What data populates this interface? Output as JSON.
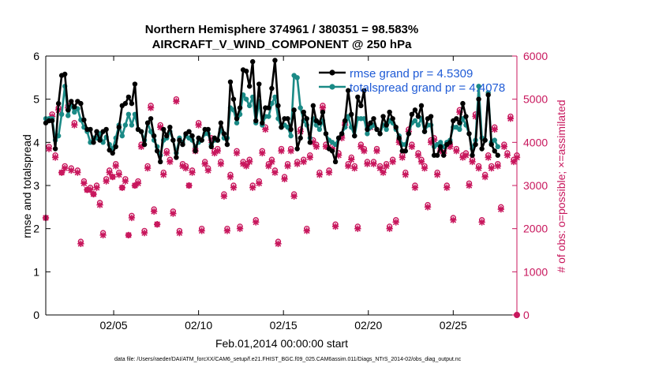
{
  "chart_data": {
    "type": "line",
    "title": [
      "Northern Hemisphere 374961 / 380351 = 98.583%",
      "AIRCRAFT_V_WIND_COMPONENT @ 250 hPa"
    ],
    "xlabel": "Feb.01,2014 00:00:00 start",
    "ylabel_left": "rmse and totalspread",
    "ylabel_right": "# of obs: o=possible; ×=assimilated",
    "x_ticks": [
      "02/05",
      "02/10",
      "02/15",
      "02/20",
      "02/25"
    ],
    "x_tick_days": [
      5,
      10,
      15,
      20,
      25
    ],
    "xlim": [
      1,
      28.75
    ],
    "y_left_ticks": [
      "0",
      "1",
      "2",
      "3",
      "4",
      "5",
      "6"
    ],
    "ylim_left": [
      0,
      6
    ],
    "y_right_ticks": [
      "0",
      "1000",
      "2000",
      "3000",
      "4000",
      "5000",
      "6000"
    ],
    "ylim_right": [
      0,
      6000
    ],
    "grid": false,
    "legend_position": "top-right",
    "footnote": "data file: /Users/raeder/DAI/ATM_forcXX/CAM6_setup/f.e21.FHIST_BGC.f09_025.CAM6assim.011/Diags_NTrS_2014-02/obs_diag_output.nc",
    "colors": {
      "rmse": "#000000",
      "spread": "#1a8a86",
      "obs": "#c8175d",
      "legend_text": "#1f5bd6"
    },
    "series": [
      {
        "name": "rmse grand pr = 4.5309",
        "values": [
          4.45,
          4.5,
          4.5,
          3.85,
          4.9,
          5.55,
          5.58,
          4.75,
          4.95,
          4.82,
          4.95,
          4.9,
          4.52,
          4.3,
          4.3,
          4.0,
          4.25,
          4.05,
          4.25,
          4.3,
          3.82,
          3.75,
          3.9,
          4.35,
          4.85,
          4.9,
          5.05,
          4.9,
          5.35,
          4.3,
          4.25,
          3.95,
          4.45,
          4.55,
          4.15,
          3.8,
          3.55,
          4.3,
          4.15,
          4.35,
          4.05,
          3.65,
          4.05,
          3.95,
          4.2,
          4.25,
          4.15,
          3.8,
          4.1,
          4.05,
          4.3,
          4.3,
          3.9,
          4.1,
          4.05,
          4.45,
          4.2,
          3.95,
          5.4,
          5.0,
          4.55,
          4.8,
          5.68,
          5.65,
          5.3,
          5.87,
          4.5,
          5.35,
          4.45,
          4.8,
          4.8,
          5.25,
          5.9,
          4.85,
          4.35,
          4.55,
          4.55,
          4.3,
          4.75,
          3.85,
          4.1,
          4.7,
          4.55,
          4.0,
          4.85,
          4.5,
          4.45,
          4.7,
          4.2,
          3.85,
          3.8,
          3.55,
          4.1,
          4.2,
          4.5,
          5.2,
          4.65,
          4.15,
          5.05,
          4.85,
          5.2,
          4.3,
          4.45,
          4.55,
          4.3,
          4.2,
          4.6,
          4.4,
          4.7,
          4.55,
          4.35,
          4.1,
          3.8,
          3.8,
          4.2,
          4.65,
          4.75,
          4.6,
          4.85,
          4.25,
          4.55,
          4.6,
          3.7,
          3.7,
          3.9,
          3.7,
          3.95,
          4.0,
          4.5,
          4.55,
          4.45,
          4.9,
          4.6,
          4.2,
          3.7,
          3.95,
          5.0,
          3.85,
          4.05,
          5.1,
          3.95,
          3.8,
          3.7
        ]
      },
      {
        "name": "totalspread grand pr = 4.4078",
        "values": [
          4.55,
          4.55,
          4.55,
          4.05,
          4.15,
          4.65,
          5.3,
          4.62,
          4.85,
          4.7,
          4.78,
          4.52,
          4.35,
          4.25,
          4.0,
          4.1,
          4.1,
          4.2,
          4.0,
          4.12,
          3.95,
          3.85,
          4.1,
          4.4,
          4.15,
          4.4,
          4.65,
          4.4,
          4.65,
          4.3,
          4.25,
          4.05,
          4.45,
          4.25,
          4.05,
          3.9,
          3.7,
          4.05,
          4.1,
          4.25,
          4.05,
          3.75,
          4.1,
          4.0,
          4.15,
          4.1,
          4.05,
          3.9,
          4.0,
          4.05,
          4.2,
          4.2,
          3.95,
          4.05,
          4.05,
          4.3,
          4.1,
          4.1,
          4.8,
          4.75,
          4.45,
          4.65,
          5.1,
          5.0,
          4.85,
          5.05,
          4.45,
          4.95,
          4.4,
          4.6,
          4.6,
          4.9,
          5.05,
          4.55,
          4.35,
          4.4,
          4.35,
          4.15,
          5.55,
          5.5,
          4.8,
          4.5,
          4.4,
          4.1,
          4.55,
          4.4,
          4.3,
          4.5,
          4.2,
          4.05,
          4.0,
          3.95,
          4.1,
          4.2,
          4.35,
          4.6,
          4.35,
          4.15,
          4.55,
          4.55,
          4.55,
          4.2,
          4.35,
          4.4,
          4.3,
          4.2,
          4.4,
          4.3,
          4.5,
          4.45,
          4.3,
          4.15,
          3.95,
          3.95,
          4.2,
          4.45,
          4.5,
          4.4,
          4.55,
          4.25,
          4.4,
          4.4,
          3.9,
          3.95,
          4.0,
          3.9,
          4.0,
          4.05,
          4.35,
          4.35,
          4.3,
          4.55,
          4.4,
          4.2,
          3.85,
          4.05,
          5.3,
          4.1,
          4.05,
          5.15,
          4.0,
          4.05,
          3.9
        ]
      },
      {
        "name": "obs possible",
        "values": [
          2250,
          3900,
          4650,
          3700,
          4800,
          3300,
          3450,
          4850,
          3400,
          4450,
          3350,
          1700,
          3100,
          2900,
          2950,
          2800,
          3000,
          2600,
          1900,
          3150,
          3350,
          3200,
          3500,
          3300,
          2950,
          3150,
          1850,
          2300,
          3000,
          3100,
          3950,
          1950,
          3450,
          4850,
          2450,
          2100,
          4400,
          3300,
          3800,
          3600,
          2400,
          5000,
          1950,
          3500,
          3450,
          3000,
          3350,
          3850,
          4450,
          2000,
          3550,
          3400,
          4100,
          3800,
          3850,
          3550,
          2800,
          2000,
          3250,
          3000,
          3800,
          2050,
          3550,
          3500,
          3600,
          3000,
          2200,
          3100,
          3800,
          4350,
          3500,
          3600,
          3350,
          1700,
          3850,
          3200,
          3500,
          3850,
          2800,
          3550,
          4300,
          3600,
          2000,
          3700,
          4050,
          3950,
          3300,
          4850,
          3950,
          3350,
          3900,
          2100,
          3750,
          4150,
          4450,
          3500,
          3650,
          3450,
          2050,
          3950,
          3850,
          3550,
          4400,
          3550,
          3850,
          3450,
          3350,
          3500,
          2050,
          3600,
          2200,
          4050,
          3700,
          3300,
          4300,
          3950,
          3000,
          3750,
          3600,
          3450,
          2550,
          4050,
          4100,
          3300,
          3850,
          3800,
          3000,
          3950,
          2250,
          3850,
          4750,
          3700,
          3750,
          3050,
          3600,
          4650,
          3450,
          2200,
          3250,
          3700,
          3450,
          4350,
          3500,
          2500,
          3950,
          3750,
          4600,
          3600,
          3700
        ]
      },
      {
        "name": "obs assimilated",
        "values": [
          2250,
          3850,
          4600,
          3650,
          4750,
          3300,
          3400,
          4800,
          3350,
          4400,
          3300,
          1650,
          3050,
          2900,
          2900,
          2800,
          2950,
          2550,
          1850,
          3100,
          3300,
          3200,
          3450,
          3250,
          2950,
          3100,
          1850,
          2250,
          3000,
          3050,
          3900,
          1900,
          3400,
          4800,
          2400,
          2100,
          4350,
          3250,
          3750,
          3550,
          2350,
          4950,
          1900,
          3450,
          3400,
          3000,
          3300,
          3800,
          4400,
          1950,
          3500,
          3350,
          4050,
          3750,
          3800,
          3500,
          2750,
          1950,
          3200,
          2950,
          3750,
          2000,
          3500,
          3450,
          3550,
          2950,
          2150,
          3050,
          3750,
          4300,
          3450,
          3550,
          3300,
          1650,
          3800,
          3150,
          3450,
          3800,
          2750,
          3500,
          4250,
          3550,
          1950,
          3650,
          4000,
          3900,
          3250,
          4800,
          3900,
          3300,
          3850,
          2050,
          3700,
          4100,
          4400,
          3450,
          3600,
          3400,
          2000,
          3900,
          3800,
          3500,
          4350,
          3500,
          3800,
          3400,
          3300,
          3450,
          2000,
          3550,
          2150,
          4000,
          3650,
          3250,
          4250,
          3900,
          2950,
          3700,
          3550,
          3400,
          2500,
          4000,
          4050,
          3250,
          3800,
          3750,
          2950,
          3900,
          2200,
          3800,
          4700,
          3650,
          3700,
          3000,
          3550,
          4600,
          3400,
          2150,
          3200,
          3650,
          3400,
          4300,
          3450,
          2450,
          3900,
          3700,
          4550,
          3550,
          3650
        ]
      }
    ],
    "x_start_day": 1,
    "x_step_days": 0.1875
  }
}
